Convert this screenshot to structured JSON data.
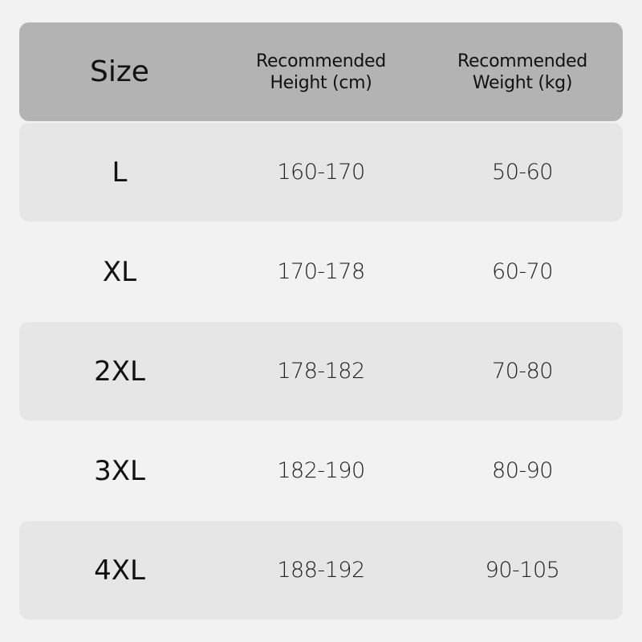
{
  "header": {
    "size": "Size",
    "height": [
      "Recommended",
      "Height (cm)"
    ],
    "weight": [
      "Recommended",
      "Weight (kg)"
    ]
  },
  "rows": [
    {
      "size": "L",
      "height": "160-170",
      "weight": "50-60"
    },
    {
      "size": "XL",
      "height": "170-178",
      "weight": "60-70"
    },
    {
      "size": "2XL",
      "height": "178-182",
      "weight": "70-80"
    },
    {
      "size": "3XL",
      "height": "182-190",
      "weight": "80-90"
    },
    {
      "size": "4XL",
      "height": "188-192",
      "weight": "90-105"
    }
  ],
  "colors": {
    "background": "#f2f2f2",
    "header": "#b3b3b3",
    "stripe": "#e6e6e6"
  }
}
